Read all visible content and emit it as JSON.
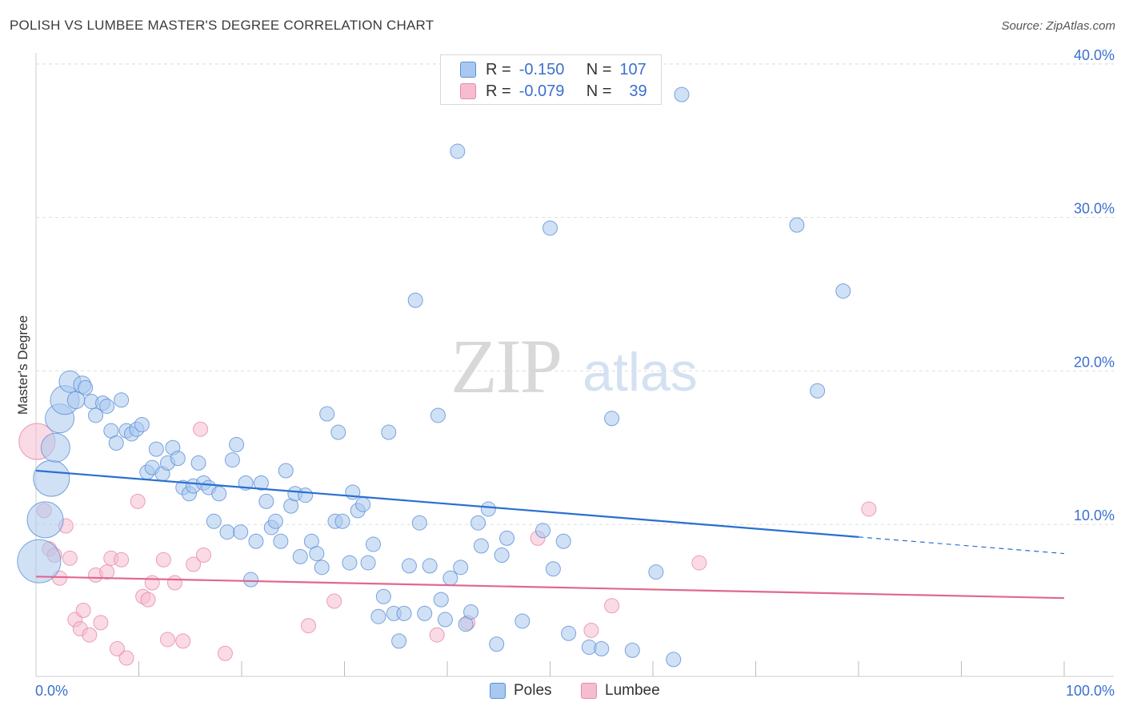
{
  "title": "POLISH VS LUMBEE MASTER'S DEGREE CORRELATION CHART",
  "source": "Source: ZipAtlas.com",
  "watermark": {
    "zip": "ZIP",
    "atlas": "atlas"
  },
  "legend_top": {
    "rows": [
      {
        "r_label": "R =",
        "r_value": "-0.150",
        "n_label": "N =",
        "n_value": "107"
      },
      {
        "r_label": "R =",
        "r_value": "-0.079",
        "n_label": "N =",
        "n_value": "39"
      }
    ]
  },
  "legend_bottom": [
    {
      "label": "Poles"
    },
    {
      "label": "Lumbee"
    }
  ],
  "colors": {
    "poles_fill": "#a9c8ef",
    "poles_stroke": "#5b8fd6",
    "poles_line": "#2a6fd1",
    "lumbee_fill": "#f6bcd0",
    "lumbee_stroke": "#e68aa9",
    "lumbee_line": "#e0688f",
    "tick_label": "#3b6fcf",
    "grid": "#dddddd"
  },
  "chart_data": {
    "type": "scatter",
    "title": "POLISH VS LUMBEE MASTER'S DEGREE CORRELATION CHART",
    "xlabel": "",
    "ylabel": "Master's Degree",
    "xlim": [
      0,
      100
    ],
    "ylim": [
      0,
      40
    ],
    "x_tick_labels": [
      "0.0%",
      "100.0%"
    ],
    "y_ticks": [
      10,
      20,
      30,
      40
    ],
    "y_tick_labels": [
      "10.0%",
      "20.0%",
      "30.0%",
      "40.0%"
    ],
    "series": [
      {
        "name": "Poles",
        "trend": {
          "x_start": 0,
          "y_start": 13.4,
          "x_solid_end": 80,
          "x_end": 100,
          "y_end": 8.0
        },
        "points": [
          [
            0.3,
            7.5,
            3
          ],
          [
            0.9,
            10.2,
            2.5
          ],
          [
            1.5,
            12.9,
            2.5
          ],
          [
            1.9,
            14.9,
            2
          ],
          [
            2.3,
            16.8,
            2
          ],
          [
            2.8,
            18.0,
            2
          ],
          [
            3.3,
            19.2,
            1.5
          ],
          [
            3.9,
            18.0,
            1.2
          ],
          [
            4.5,
            19.0,
            1.2
          ],
          [
            4.8,
            18.8,
            1
          ],
          [
            5.4,
            17.9,
            1
          ],
          [
            5.8,
            17.0,
            1
          ],
          [
            6.5,
            17.8,
            1
          ],
          [
            6.9,
            17.6,
            1
          ],
          [
            7.3,
            16.0,
            1
          ],
          [
            7.8,
            15.2,
            1
          ],
          [
            8.3,
            18.0,
            1
          ],
          [
            8.8,
            16.0,
            1
          ],
          [
            9.3,
            15.8,
            1
          ],
          [
            9.8,
            16.1,
            1
          ],
          [
            10.3,
            16.4,
            1
          ],
          [
            10.8,
            13.3,
            1
          ],
          [
            11.3,
            13.6,
            1
          ],
          [
            11.7,
            14.8,
            1
          ],
          [
            12.3,
            13.2,
            1
          ],
          [
            12.8,
            13.9,
            1
          ],
          [
            13.3,
            14.9,
            1
          ],
          [
            13.8,
            14.2,
            1
          ],
          [
            14.3,
            12.3,
            1
          ],
          [
            14.9,
            11.9,
            1
          ],
          [
            15.3,
            12.4,
            1
          ],
          [
            15.8,
            13.9,
            1
          ],
          [
            16.3,
            12.6,
            1
          ],
          [
            16.8,
            12.3,
            1
          ],
          [
            17.3,
            10.1,
            1
          ],
          [
            17.8,
            11.9,
            1
          ],
          [
            18.6,
            9.4,
            1
          ],
          [
            19.1,
            14.1,
            1
          ],
          [
            19.5,
            15.1,
            1
          ],
          [
            19.9,
            9.4,
            1
          ],
          [
            20.4,
            12.6,
            1
          ],
          [
            20.9,
            6.3,
            1
          ],
          [
            21.4,
            8.8,
            1
          ],
          [
            21.9,
            12.6,
            1
          ],
          [
            22.4,
            11.4,
            1
          ],
          [
            22.9,
            9.7,
            1
          ],
          [
            23.3,
            10.1,
            1
          ],
          [
            23.8,
            8.8,
            1
          ],
          [
            24.3,
            13.4,
            1
          ],
          [
            24.8,
            11.1,
            1
          ],
          [
            25.2,
            11.9,
            1
          ],
          [
            25.7,
            7.8,
            1
          ],
          [
            26.2,
            11.8,
            1
          ],
          [
            26.8,
            8.8,
            1
          ],
          [
            27.3,
            8.0,
            1
          ],
          [
            27.8,
            7.1,
            1
          ],
          [
            28.3,
            17.1,
            1
          ],
          [
            29.1,
            10.1,
            1
          ],
          [
            29.4,
            15.9,
            1
          ],
          [
            29.8,
            10.1,
            1
          ],
          [
            30.5,
            7.4,
            1
          ],
          [
            30.8,
            12.0,
            1
          ],
          [
            31.3,
            10.8,
            1
          ],
          [
            31.8,
            11.2,
            1
          ],
          [
            32.3,
            7.4,
            1
          ],
          [
            32.8,
            8.6,
            1
          ],
          [
            33.3,
            3.9,
            1
          ],
          [
            33.8,
            5.2,
            1
          ],
          [
            34.3,
            15.9,
            1
          ],
          [
            34.8,
            4.1,
            1
          ],
          [
            35.3,
            2.3,
            1
          ],
          [
            35.8,
            4.1,
            1
          ],
          [
            36.3,
            7.2,
            1
          ],
          [
            36.9,
            24.5,
            1
          ],
          [
            37.3,
            10.0,
            1
          ],
          [
            37.8,
            4.1,
            1
          ],
          [
            38.3,
            7.2,
            1
          ],
          [
            39.1,
            17.0,
            1
          ],
          [
            39.4,
            5.0,
            1
          ],
          [
            39.8,
            3.7,
            1
          ],
          [
            40.3,
            6.4,
            1
          ],
          [
            41.0,
            34.2,
            1
          ],
          [
            41.3,
            7.1,
            1
          ],
          [
            41.8,
            3.4,
            1
          ],
          [
            42.3,
            4.2,
            1
          ],
          [
            43.0,
            10.0,
            1
          ],
          [
            43.3,
            8.5,
            1
          ],
          [
            44.0,
            10.9,
            1
          ],
          [
            44.8,
            2.1,
            1
          ],
          [
            45.3,
            7.9,
            1
          ],
          [
            45.8,
            9.0,
            1
          ],
          [
            47.3,
            3.6,
            1
          ],
          [
            49.3,
            9.5,
            1
          ],
          [
            50.0,
            29.2,
            1
          ],
          [
            50.3,
            7.0,
            1
          ],
          [
            51.3,
            8.8,
            1
          ],
          [
            51.8,
            2.8,
            1
          ],
          [
            53.8,
            1.9,
            1
          ],
          [
            55.0,
            1.8,
            1
          ],
          [
            56.0,
            16.8,
            1
          ],
          [
            58.0,
            1.7,
            1
          ],
          [
            60.3,
            6.8,
            1
          ],
          [
            62.0,
            1.1,
            1
          ],
          [
            62.8,
            37.9,
            1
          ],
          [
            74.0,
            29.4,
            1
          ],
          [
            76.0,
            18.6,
            1
          ],
          [
            78.5,
            25.1,
            1
          ]
        ]
      },
      {
        "name": "Lumbee",
        "trend": {
          "x_start": 0,
          "y_start": 6.5,
          "x_end": 100,
          "y_end": 5.1
        },
        "points": [
          [
            0.1,
            15.3,
            2.5
          ],
          [
            0.8,
            10.8,
            1
          ],
          [
            1.3,
            8.3,
            1
          ],
          [
            1.8,
            7.9,
            1
          ],
          [
            2.3,
            6.4,
            1
          ],
          [
            2.9,
            9.8,
            1
          ],
          [
            3.3,
            7.7,
            1
          ],
          [
            3.8,
            3.7,
            1
          ],
          [
            4.3,
            3.1,
            1
          ],
          [
            4.6,
            4.3,
            1
          ],
          [
            5.2,
            2.7,
            1
          ],
          [
            5.8,
            6.6,
            1
          ],
          [
            6.3,
            3.5,
            1
          ],
          [
            6.9,
            6.8,
            1
          ],
          [
            7.3,
            7.7,
            1
          ],
          [
            7.9,
            1.8,
            1
          ],
          [
            8.3,
            7.6,
            1
          ],
          [
            8.8,
            1.2,
            1
          ],
          [
            9.9,
            11.4,
            1
          ],
          [
            10.4,
            5.2,
            1
          ],
          [
            10.9,
            5.0,
            1
          ],
          [
            11.3,
            6.1,
            1
          ],
          [
            12.4,
            7.6,
            1
          ],
          [
            12.8,
            2.4,
            1
          ],
          [
            13.5,
            6.1,
            1
          ],
          [
            14.3,
            2.3,
            1
          ],
          [
            15.3,
            7.3,
            1
          ],
          [
            16.0,
            16.1,
            1
          ],
          [
            16.3,
            7.9,
            1
          ],
          [
            18.4,
            1.5,
            1
          ],
          [
            26.5,
            3.3,
            1
          ],
          [
            29.0,
            4.9,
            1
          ],
          [
            39.0,
            2.7,
            1
          ],
          [
            42.0,
            3.5,
            1
          ],
          [
            48.8,
            9.0,
            1
          ],
          [
            54.0,
            3.0,
            1
          ],
          [
            56.0,
            4.6,
            1
          ],
          [
            64.5,
            7.4,
            1
          ],
          [
            81.0,
            10.9,
            1
          ]
        ]
      }
    ]
  }
}
